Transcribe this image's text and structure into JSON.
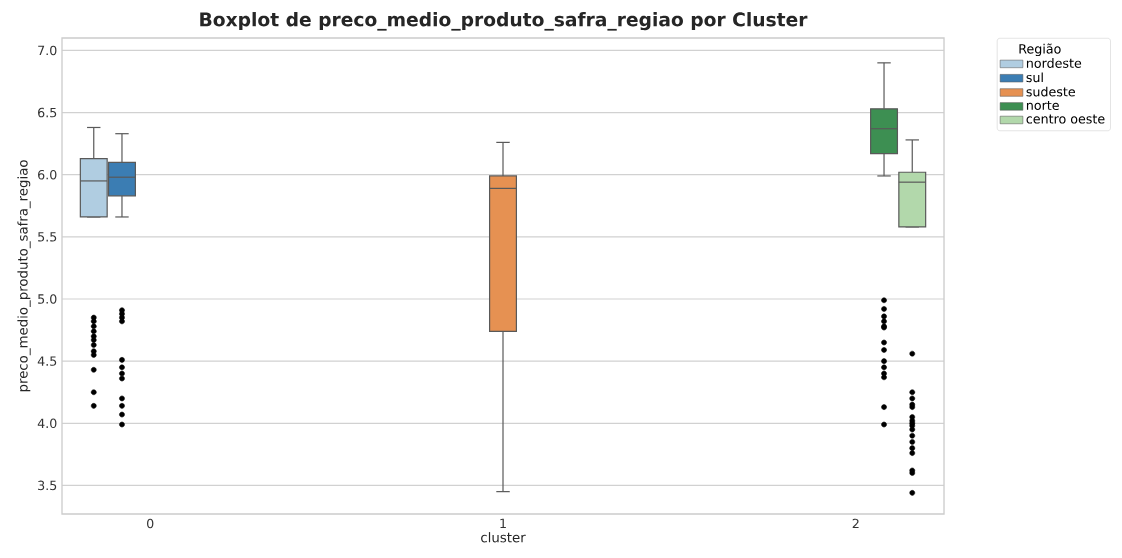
{
  "chart_data": {
    "type": "box",
    "title": "Boxplot de preco_medio_produto_safra_regiao por Cluster",
    "xlabel": "cluster",
    "ylabel": "preco_medio_produto_safra_regiao",
    "legend_title": "Região",
    "categories": [
      "0",
      "1",
      "2"
    ],
    "ylim": [
      3.27,
      7.1
    ],
    "yticks": [
      {
        "value": 3.5,
        "label": "3.5"
      },
      {
        "value": 4.0,
        "label": "4.0"
      },
      {
        "value": 4.5,
        "label": "4.5"
      },
      {
        "value": 5.0,
        "label": "5.0"
      },
      {
        "value": 5.5,
        "label": "5.5"
      },
      {
        "value": 6.0,
        "label": "6.0"
      },
      {
        "value": 6.5,
        "label": "6.5"
      },
      {
        "value": 7.0,
        "label": "7.0"
      }
    ],
    "grid": "y",
    "legend": "top right",
    "series": [
      {
        "name": "nordeste",
        "color": "#b0cde1",
        "boxes": [
          {
            "low": 5.66,
            "q1": 5.66,
            "median": 5.95,
            "q3": 6.13,
            "high": 6.38,
            "outliers": [
              4.85,
              4.82,
              4.78,
              4.74,
              4.7,
              4.67,
              4.63,
              4.58,
              4.55,
              4.43,
              4.25,
              4.14
            ]
          },
          null,
          null
        ]
      },
      {
        "name": "sul",
        "color": "#3b7db3",
        "boxes": [
          {
            "low": 5.66,
            "q1": 5.83,
            "median": 5.98,
            "q3": 6.1,
            "high": 6.33,
            "outliers": [
              4.91,
              4.88,
              4.85,
              4.82,
              4.51,
              4.45,
              4.4,
              4.36,
              4.2,
              4.14,
              4.07,
              3.99
            ]
          },
          null,
          null
        ]
      },
      {
        "name": "sudeste",
        "color": "#e69152",
        "boxes": [
          null,
          {
            "low": 3.45,
            "q1": 4.74,
            "median": 5.89,
            "q3": 5.99,
            "high": 6.26
          },
          null
        ]
      },
      {
        "name": "norte",
        "color": "#3d8f52",
        "boxes": [
          null,
          null,
          {
            "low": 5.99,
            "q1": 6.17,
            "median": 6.37,
            "q3": 6.53,
            "high": 6.9,
            "outliers": [
              4.99,
              4.92,
              4.86,
              4.82,
              4.78,
              4.77,
              4.65,
              4.59,
              4.5,
              4.45,
              4.4,
              4.37,
              4.13,
              3.99
            ]
          }
        ]
      },
      {
        "name": "centro oeste",
        "color": "#b2d8ab",
        "boxes": [
          null,
          null,
          {
            "low": 5.58,
            "q1": 5.58,
            "median": 5.94,
            "q3": 6.02,
            "high": 6.28,
            "outliers": [
              4.56,
              4.25,
              4.2,
              4.15,
              4.13,
              4.05,
              4.02,
              4.0,
              3.98,
              3.95,
              3.9,
              3.85,
              3.8,
              3.76,
              3.62,
              3.6,
              3.44
            ]
          }
        ]
      }
    ]
  }
}
